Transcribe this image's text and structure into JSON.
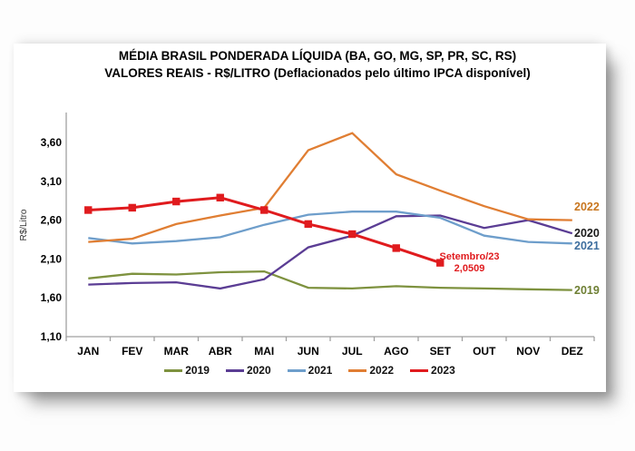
{
  "title": {
    "line1": "MÉDIA BRASIL PONDERADA LÍQUIDA (BA, GO, MG, SP, PR, SC, RS)",
    "line2": "VALORES REAIS - R$/LITRO (Deflacionados pelo último IPCA disponível)"
  },
  "chart_data": {
    "type": "line",
    "title": "MÉDIA BRASIL PONDERADA LÍQUIDA (BA, GO, MG, SP, PR, SC, RS) — VALORES REAIS - R$/LITRO (Deflacionados pelo último IPCA disponível)",
    "xlabel": "",
    "ylabel": "R$/Litro",
    "ylim": [
      1.1,
      3.8
    ],
    "grid": false,
    "legend_position": "bottom",
    "y_tick_labels": [
      "1,10",
      "1,60",
      "2,10",
      "2,60",
      "3,10",
      "3,60"
    ],
    "y_tick_values": [
      1.1,
      1.6,
      2.1,
      2.6,
      3.1,
      3.6
    ],
    "categories": [
      "JAN",
      "FEV",
      "MAR",
      "ABR",
      "MAI",
      "JUN",
      "JUL",
      "AGO",
      "SET",
      "OUT",
      "NOV",
      "DEZ"
    ],
    "series": [
      {
        "name": "2019",
        "color": "#7E923F",
        "label_color": "#6E7F33",
        "marker": "none",
        "values": [
          1.85,
          1.91,
          1.9,
          1.93,
          1.94,
          1.73,
          1.72,
          1.75,
          1.73,
          1.72,
          1.71,
          1.7
        ]
      },
      {
        "name": "2020",
        "color": "#5B3D94",
        "label_color": "#1A1A1A",
        "marker": "none",
        "values": [
          1.77,
          1.79,
          1.8,
          1.72,
          1.84,
          2.25,
          2.4,
          2.65,
          2.66,
          2.5,
          2.6,
          2.43
        ]
      },
      {
        "name": "2021",
        "color": "#6E9ECB",
        "label_color": "#3E6E9E",
        "marker": "none",
        "values": [
          2.37,
          2.3,
          2.33,
          2.38,
          2.54,
          2.67,
          2.71,
          2.71,
          2.63,
          2.4,
          2.32,
          2.3
        ]
      },
      {
        "name": "2022",
        "color": "#E07E33",
        "label_color": "#C8761F",
        "marker": "none",
        "values": [
          2.32,
          2.36,
          2.55,
          2.66,
          2.76,
          3.5,
          3.72,
          3.19,
          2.98,
          2.78,
          2.61,
          2.6
        ]
      },
      {
        "name": "2023",
        "color": "#E01B1E",
        "label_color": "#E01B1E",
        "marker": "square",
        "values": [
          2.73,
          2.76,
          2.84,
          2.89,
          2.73,
          2.55,
          2.42,
          2.24,
          2.0509
        ]
      }
    ],
    "annotation": {
      "line1": "Setembro/23",
      "line2": "2,0509",
      "color": "#E01B1E",
      "x": "SET",
      "y": 2.0509
    },
    "end_labels": [
      "2022",
      "2020",
      "2021",
      "2019"
    ],
    "axis_color": "#A0A0A0",
    "text_color": "#000000"
  }
}
